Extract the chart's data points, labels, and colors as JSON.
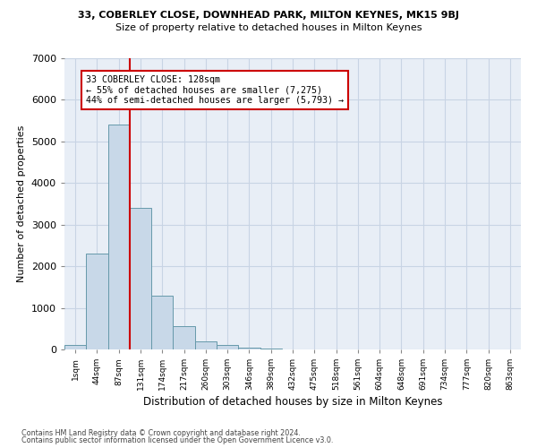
{
  "title_line1": "33, COBERLEY CLOSE, DOWNHEAD PARK, MILTON KEYNES, MK15 9BJ",
  "title_line2": "Size of property relative to detached houses in Milton Keynes",
  "xlabel": "Distribution of detached houses by size in Milton Keynes",
  "ylabel": "Number of detached properties",
  "footer_line1": "Contains HM Land Registry data © Crown copyright and database right 2024.",
  "footer_line2": "Contains public sector information licensed under the Open Government Licence v3.0.",
  "bar_labels": [
    "1sqm",
    "44sqm",
    "87sqm",
    "131sqm",
    "174sqm",
    "217sqm",
    "260sqm",
    "303sqm",
    "346sqm",
    "389sqm",
    "432sqm",
    "475sqm",
    "518sqm",
    "561sqm",
    "604sqm",
    "648sqm",
    "691sqm",
    "734sqm",
    "777sqm",
    "820sqm",
    "863sqm"
  ],
  "bar_values": [
    100,
    2300,
    5400,
    3400,
    1300,
    550,
    200,
    100,
    50,
    20,
    10,
    5,
    3,
    2,
    1,
    1,
    0,
    0,
    0,
    0,
    0
  ],
  "bar_color": "#c8d8e8",
  "bar_edge_color": "#6699aa",
  "grid_color": "#c8d4e4",
  "background_color": "#e8eef6",
  "vline_color": "#cc0000",
  "annotation_box_color": "#cc0000",
  "ylim": [
    0,
    7000
  ],
  "yticks": [
    0,
    1000,
    2000,
    3000,
    4000,
    5000,
    6000,
    7000
  ],
  "annotation_text_line1": "33 COBERLEY CLOSE: 128sqm",
  "annotation_text_line2": "← 55% of detached houses are smaller (7,275)",
  "annotation_text_line3": "44% of semi-detached houses are larger (5,793) →"
}
